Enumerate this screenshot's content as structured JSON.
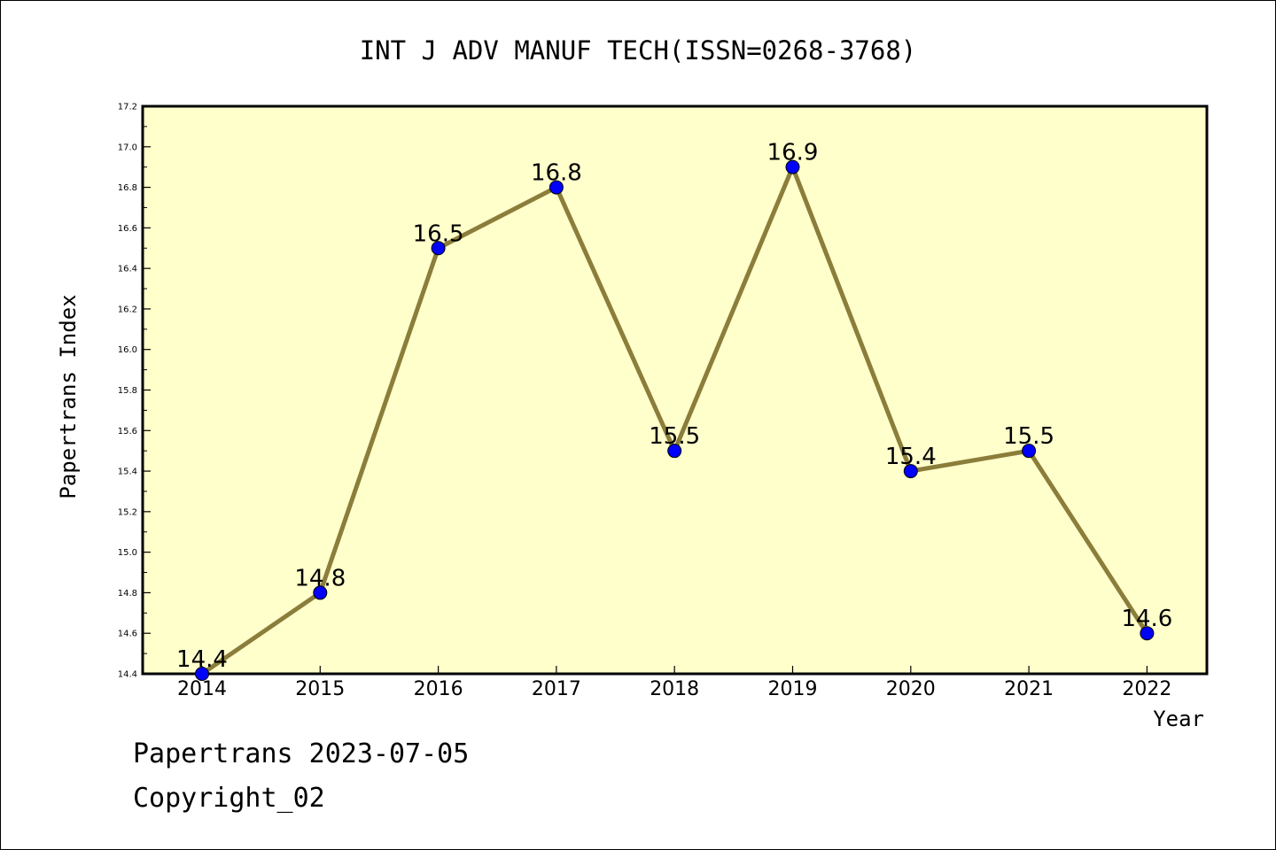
{
  "chart_data": {
    "type": "line",
    "title": "INT J ADV MANUF TECH(ISSN=0268-3768)",
    "xlabel": "Year",
    "ylabel": "Papertrans Index",
    "categories": [
      "2014",
      "2015",
      "2016",
      "2017",
      "2018",
      "2019",
      "2020",
      "2021",
      "2022"
    ],
    "series": [
      {
        "values": [
          14.4,
          14.8,
          16.5,
          16.8,
          15.5,
          16.9,
          15.4,
          15.5,
          14.6
        ],
        "labels": [
          "14.4",
          "14.8",
          "16.5",
          "16.8",
          "15.5",
          "16.9",
          "15.4",
          "15.5",
          "14.6"
        ]
      }
    ],
    "ylim": [
      14.4,
      17.2
    ],
    "yticks": [
      "14.4",
      "14.6",
      "14.8",
      "15.0",
      "15.2",
      "15.4",
      "15.6",
      "15.8",
      "16.0",
      "16.2",
      "16.4",
      "16.6",
      "16.8",
      "17.0",
      "17.2"
    ],
    "grid": false,
    "colors": {
      "plot_background": "#ffffcc",
      "line": "#8b7d3a",
      "marker": "#0000ff"
    }
  },
  "footer": {
    "line1": "Papertrans 2023-07-05",
    "line2": "Copyright_02"
  }
}
